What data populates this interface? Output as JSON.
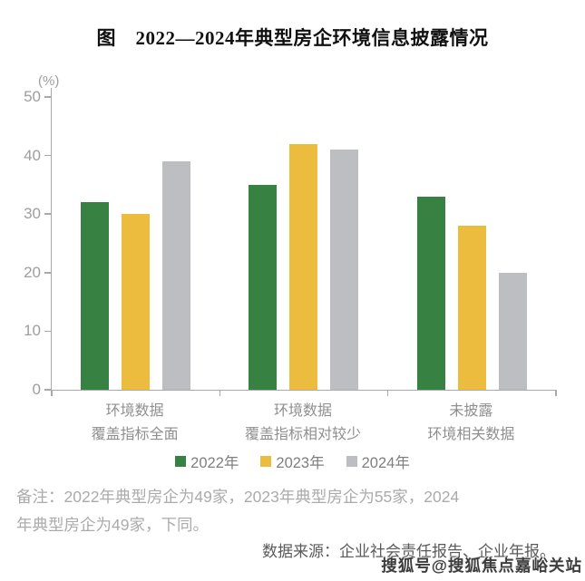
{
  "title": "图　2022—2024年典型房企环境信息披露情况",
  "chart_data": {
    "type": "bar",
    "title": "图 2022—2024年典型房企环境信息披露情况",
    "unit_label": "(%)",
    "xlabel": "",
    "ylabel": "(%)",
    "ylim": [
      0,
      50
    ],
    "yticks": [
      0,
      10,
      20,
      30,
      40,
      50
    ],
    "grid": false,
    "legend_position": "bottom",
    "categories": [
      [
        "环境数据",
        "覆盖指标全面"
      ],
      [
        "环境数据",
        "覆盖指标相对较少"
      ],
      [
        "未披露",
        "环境相关数据"
      ]
    ],
    "series": [
      {
        "name": "2022年",
        "color": "#378243",
        "values": [
          32,
          35,
          33
        ]
      },
      {
        "name": "2023年",
        "color": "#ecbc3f",
        "values": [
          30,
          42,
          28
        ]
      },
      {
        "name": "2024年",
        "color": "#bcbec2",
        "values": [
          39,
          41,
          20
        ]
      }
    ]
  },
  "note": {
    "line1": "备注：2022年典型房企为49家，2023年典型房企为55家，2024",
    "line2": "年典型房企为49家，下同。"
  },
  "source": "数据来源：企业社会责任报告、企业年报。",
  "watermark": "搜狐号@搜狐焦点嘉峪关站",
  "colors": {
    "axis": "#a9a9a9",
    "tick_label": "#9e9e9e",
    "category_label": "#8f8f8f",
    "legend_text": "#7f7f7f",
    "note_text": "#ababab",
    "source_text": "#5a5a5a",
    "title_text": "#111111"
  }
}
